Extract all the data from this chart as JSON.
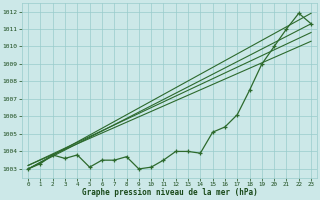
{
  "x": [
    0,
    1,
    2,
    3,
    4,
    5,
    6,
    7,
    8,
    9,
    10,
    11,
    12,
    13,
    14,
    15,
    16,
    17,
    18,
    19,
    20,
    21,
    22,
    23
  ],
  "main_line": [
    1003.0,
    1003.3,
    1003.8,
    1003.6,
    1003.8,
    1003.1,
    1003.5,
    1003.5,
    1003.7,
    1003.0,
    1003.1,
    1003.5,
    1004.0,
    1004.0,
    1003.9,
    1005.1,
    1005.4,
    1006.1,
    1007.5,
    1009.0,
    1010.0,
    1011.0,
    1011.9,
    1011.3
  ],
  "trend_lines": [
    [
      1003.0,
      1011.9
    ],
    [
      1003.0,
      1011.3
    ],
    [
      1003.2,
      1010.8
    ],
    [
      1003.2,
      1010.3
    ]
  ],
  "bg_color": "#cce8e8",
  "line_color": "#2d6a2d",
  "grid_color": "#99cccc",
  "xlabel": "Graphe pression niveau de la mer (hPa)",
  "ylim": [
    1002.5,
    1012.5
  ],
  "xlim": [
    -0.5,
    23.5
  ],
  "yticks": [
    1003,
    1004,
    1005,
    1006,
    1007,
    1008,
    1009,
    1010,
    1011,
    1012
  ],
  "xticks": [
    0,
    1,
    2,
    3,
    4,
    5,
    6,
    7,
    8,
    9,
    10,
    11,
    12,
    13,
    14,
    15,
    16,
    17,
    18,
    19,
    20,
    21,
    22,
    23
  ]
}
